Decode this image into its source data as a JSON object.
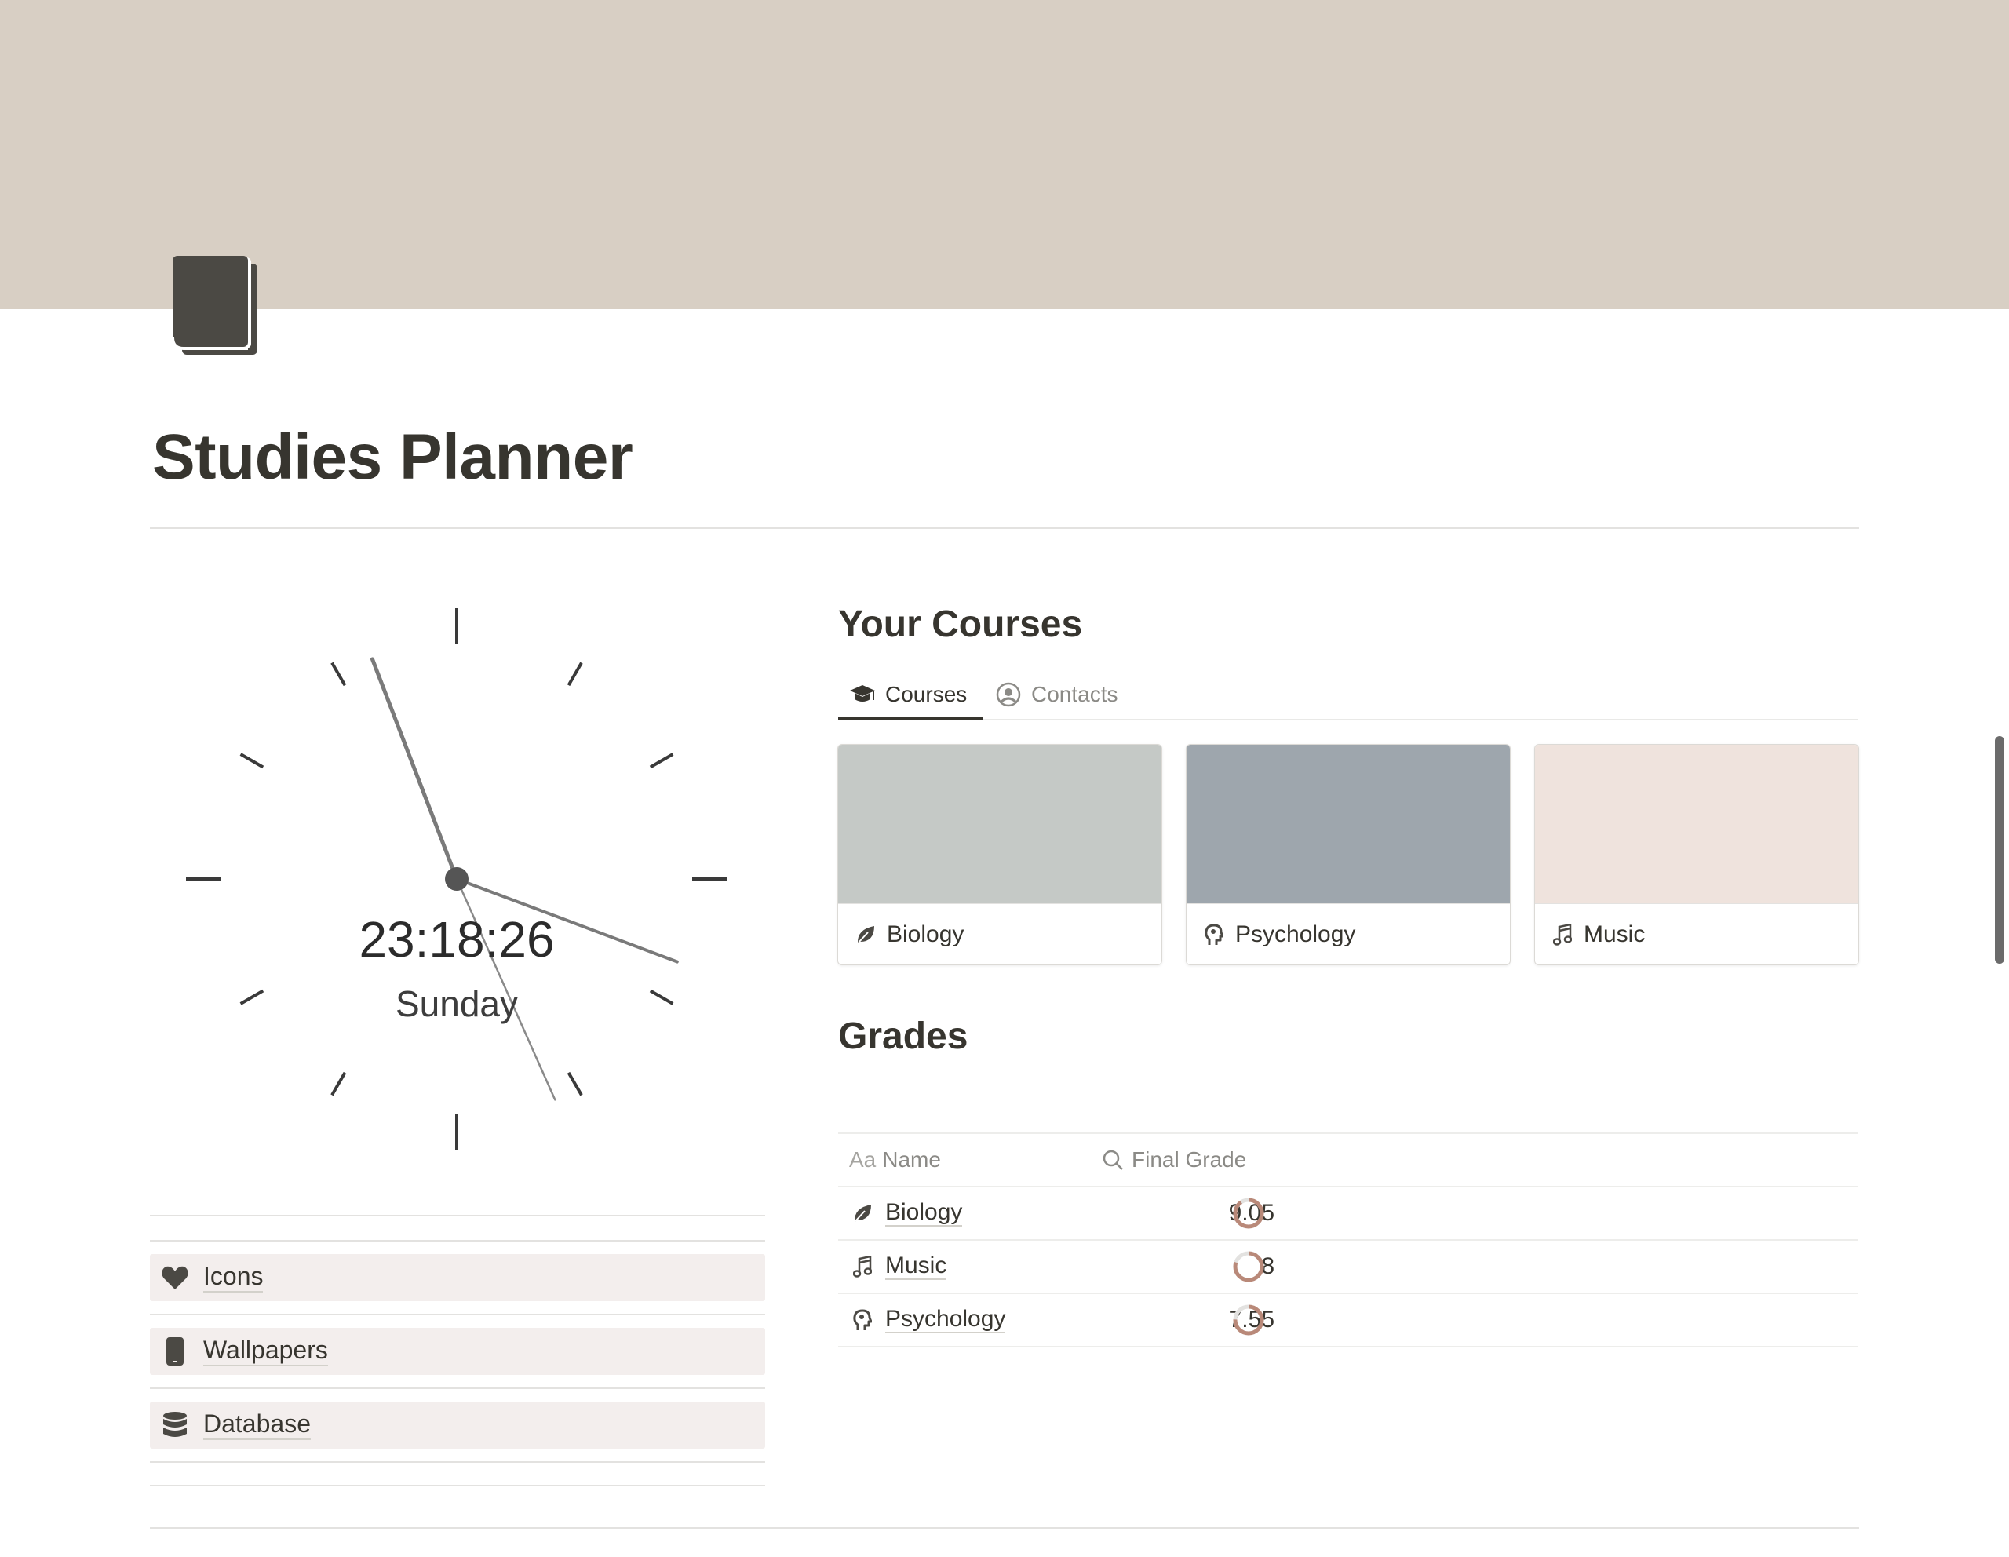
{
  "page": {
    "title": "Studies Planner",
    "cover_color": "#d8cfc4",
    "page_icon": "book-icon"
  },
  "clock": {
    "time": "23:18:26",
    "day": "Sunday",
    "hour": 23,
    "minute": 18,
    "second": 26
  },
  "links": [
    {
      "label": "Icons",
      "icon": "heart-icon"
    },
    {
      "label": "Wallpapers",
      "icon": "phone-icon"
    },
    {
      "label": "Database",
      "icon": "database-icon"
    }
  ],
  "courses": {
    "heading": "Your Courses",
    "tabs": [
      {
        "label": "Courses",
        "icon": "graduation-cap-icon",
        "active": true
      },
      {
        "label": "Contacts",
        "icon": "user-circle-icon",
        "active": false
      }
    ],
    "cards": [
      {
        "title": "Biology",
        "icon": "leaf-icon",
        "cover_color": "#c5c9c6"
      },
      {
        "title": "Psychology",
        "icon": "head-icon",
        "cover_color": "#9ea6ad"
      },
      {
        "title": "Music",
        "icon": "music-note-icon",
        "cover_color": "#efe3dd"
      }
    ]
  },
  "grades": {
    "heading": "Grades",
    "columns": [
      {
        "label": "Name",
        "icon": "text-aa-icon"
      },
      {
        "label": "Final Grade",
        "icon": "search-icon"
      }
    ],
    "rows": [
      {
        "name": "Biology",
        "icon": "leaf-icon",
        "grade": "9.05",
        "fraction": 0.905
      },
      {
        "name": "Music",
        "icon": "music-note-icon",
        "grade": "8",
        "fraction": 0.8
      },
      {
        "name": "Psychology",
        "icon": "head-icon",
        "grade": "7.55",
        "fraction": 0.755
      }
    ],
    "ring_color": "#b98979",
    "ring_track_color": "#e3e2e0"
  },
  "icon_text": {
    "aa": "Aa"
  }
}
